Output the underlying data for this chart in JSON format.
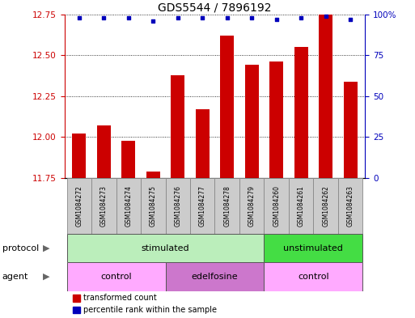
{
  "title": "GDS5544 / 7896192",
  "samples": [
    "GSM1084272",
    "GSM1084273",
    "GSM1084274",
    "GSM1084275",
    "GSM1084276",
    "GSM1084277",
    "GSM1084278",
    "GSM1084279",
    "GSM1084260",
    "GSM1084261",
    "GSM1084262",
    "GSM1084263"
  ],
  "bar_values": [
    12.02,
    12.07,
    11.98,
    11.79,
    12.38,
    12.17,
    12.62,
    12.44,
    12.46,
    12.55,
    12.75,
    12.34
  ],
  "percentile_values": [
    98,
    98,
    98,
    96,
    98,
    98,
    98,
    98,
    97,
    98,
    99,
    97
  ],
  "ylim_left": [
    11.75,
    12.75
  ],
  "ylim_right": [
    0,
    100
  ],
  "yticks_left": [
    11.75,
    12.0,
    12.25,
    12.5,
    12.75
  ],
  "yticks_right": [
    0,
    25,
    50,
    75,
    100
  ],
  "bar_color": "#cc0000",
  "dot_color": "#0000bb",
  "bg_color": "#ffffff",
  "protocol_groups": [
    {
      "label": "stimulated",
      "start": 0,
      "end": 8,
      "color": "#bbeebb"
    },
    {
      "label": "unstimulated",
      "start": 8,
      "end": 12,
      "color": "#44dd44"
    }
  ],
  "agent_groups": [
    {
      "label": "control",
      "start": 0,
      "end": 4,
      "color": "#ffaaff"
    },
    {
      "label": "edelfosine",
      "start": 4,
      "end": 8,
      "color": "#cc77cc"
    },
    {
      "label": "control",
      "start": 8,
      "end": 12,
      "color": "#ffaaff"
    }
  ],
  "legend_items": [
    {
      "label": "transformed count",
      "color": "#cc0000"
    },
    {
      "label": "percentile rank within the sample",
      "color": "#0000bb"
    }
  ],
  "ylabel_left_color": "#cc0000",
  "ylabel_right_color": "#0000bb",
  "title_fontsize": 10,
  "tick_fontsize": 7.5,
  "sample_fontsize": 5.5,
  "row_label_fontsize": 8,
  "legend_fontsize": 7,
  "group_label_fontsize": 8
}
